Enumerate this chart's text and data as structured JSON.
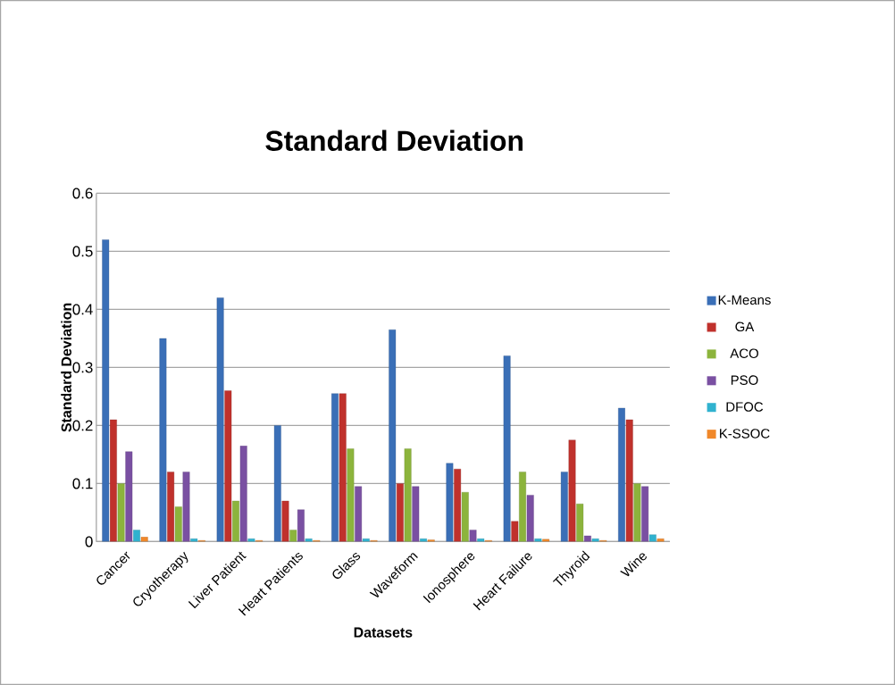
{
  "chart_data": {
    "type": "bar",
    "title": "Standard Deviation",
    "xlabel": "Datasets",
    "ylabel": "Standard Deviation",
    "categories": [
      "Cancer",
      "Cryotherapy",
      "Liver Patient",
      "Heart Patients",
      "Glass",
      "Waveform",
      "Ionosphere",
      "Heart Failure",
      "Thyroid",
      "Wine"
    ],
    "series": [
      {
        "name": "K-Means",
        "color": "#3a6fb7",
        "values": [
          0.52,
          0.35,
          0.42,
          0.2,
          0.255,
          0.365,
          0.135,
          0.32,
          0.12,
          0.23
        ]
      },
      {
        "name": "GA",
        "color": "#c0312c",
        "values": [
          0.21,
          0.12,
          0.26,
          0.07,
          0.255,
          0.1,
          0.125,
          0.035,
          0.175,
          0.21
        ]
      },
      {
        "name": "ACO",
        "color": "#8cb43c",
        "values": [
          0.1,
          0.06,
          0.07,
          0.02,
          0.16,
          0.16,
          0.085,
          0.12,
          0.065,
          0.1
        ]
      },
      {
        "name": "PSO",
        "color": "#7a50a2",
        "values": [
          0.155,
          0.12,
          0.165,
          0.055,
          0.095,
          0.095,
          0.02,
          0.08,
          0.01,
          0.095
        ]
      },
      {
        "name": "DFOC",
        "color": "#30b2cf",
        "values": [
          0.02,
          0.005,
          0.005,
          0.005,
          0.005,
          0.005,
          0.005,
          0.005,
          0.005,
          0.012
        ]
      },
      {
        "name": "K-SSOC",
        "color": "#f0882a",
        "values": [
          0.008,
          0.002,
          0.002,
          0.002,
          0.002,
          0.003,
          0.002,
          0.004,
          0.002,
          0.005
        ]
      }
    ],
    "ylim": [
      0,
      0.6
    ],
    "yticks": [
      0,
      0.1,
      0.2,
      0.3,
      0.4,
      0.5,
      0.6
    ],
    "grid": "y",
    "legend": "right"
  }
}
